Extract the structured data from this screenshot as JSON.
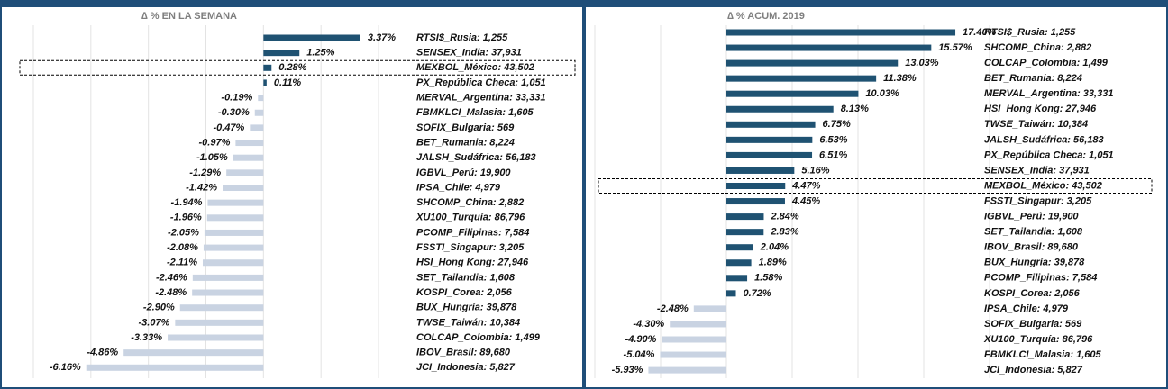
{
  "chart_data": [
    {
      "type": "bar",
      "orientation": "horizontal",
      "title": "∆ % EN LA SEMANA",
      "categories": [
        "RTSI$_Rusia: 1,255",
        "SENSEX_India: 37,931",
        "MEXBOL_México: 43,502",
        "PX_República Checa: 1,051",
        "MERVAL_Argentina: 33,331",
        "FBMKLCI_Malasia: 1,605",
        "SOFIX_Bulgaria: 569",
        "BET_Rumania: 8,224",
        "JALSH_Sudáfrica: 56,183",
        "IGBVL_Perú: 19,900",
        "IPSA_Chile: 4,979",
        "SHCOMP_China: 2,882",
        "XU100_Turquía: 86,796",
        "PCOMP_Filipinas: 7,584",
        "FSSTI_Singapur: 3,205",
        "HSI_Hong Kong: 27,946",
        "SET_Tailandia: 1,608",
        "KOSPI_Corea: 2,056",
        "BUX_Hungría: 39,878",
        "TWSE_Taiwán: 10,384",
        "COLCAP_Colombia: 1,499",
        "IBOV_Brasil: 89,680",
        "JCI_Indonesia: 5,827"
      ],
      "values": [
        3.37,
        1.25,
        0.28,
        0.11,
        -0.19,
        -0.3,
        -0.47,
        -0.97,
        -1.05,
        -1.29,
        -1.42,
        -1.94,
        -1.96,
        -2.05,
        -2.08,
        -2.11,
        -2.46,
        -2.48,
        -2.9,
        -3.07,
        -3.33,
        -4.86,
        -6.16
      ],
      "value_labels": [
        "3.37%",
        "1.25%",
        "0.28%",
        "0.11%",
        "-0.19%",
        "-0.30%",
        "-0.47%",
        "-0.97%",
        "-1.05%",
        "-1.29%",
        "-1.42%",
        "-1.94%",
        "-1.96%",
        "-2.05%",
        "-2.08%",
        "-2.11%",
        "-2.46%",
        "-2.48%",
        "-2.90%",
        "-3.07%",
        "-3.33%",
        "-4.86%",
        "-6.16%"
      ],
      "positive_color": "#1f5272",
      "negative_color": "#c9d3e2",
      "xlim": [
        -8,
        4
      ],
      "xticks": [
        -8,
        -6,
        -4,
        -2,
        0,
        2,
        4
      ],
      "grid": true,
      "highlight_index": 2
    },
    {
      "type": "bar",
      "orientation": "horizontal",
      "title": "∆ % ACUM. 2019",
      "categories": [
        "RTSI$_Rusia: 1,255",
        "SHCOMP_China: 2,882",
        "COLCAP_Colombia: 1,499",
        "BET_Rumania: 8,224",
        "MERVAL_Argentina: 33,331",
        "HSI_Hong Kong: 27,946",
        "TWSE_Taiwán: 10,384",
        "JALSH_Sudáfrica: 56,183",
        "PX_República Checa: 1,051",
        "SENSEX_India: 37,931",
        "MEXBOL_México: 43,502",
        "FSSTI_Singapur: 3,205",
        "IGBVL_Perú: 19,900",
        "SET_Tailandia: 1,608",
        "IBOV_Brasil: 89,680",
        "BUX_Hungría: 39,878",
        "PCOMP_Filipinas: 7,584",
        "KOSPI_Corea: 2,056",
        "IPSA_Chile: 4,979",
        "SOFIX_Bulgaria: 569",
        "XU100_Turquía: 86,796",
        "FBMKLCI_Malasia: 1,605",
        "JCI_Indonesia: 5,827"
      ],
      "values": [
        17.4,
        15.57,
        13.03,
        11.38,
        10.03,
        8.13,
        6.75,
        6.53,
        6.51,
        5.16,
        4.47,
        4.45,
        2.84,
        2.83,
        2.04,
        1.89,
        1.58,
        0.72,
        -2.48,
        -4.3,
        -4.9,
        -5.04,
        -5.93
      ],
      "value_labels": [
        "17.40%",
        "15.57%",
        "13.03%",
        "11.38%",
        "10.03%",
        "8.13%",
        "6.75%",
        "6.53%",
        "6.51%",
        "5.16%",
        "4.47%",
        "4.45%",
        "2.84%",
        "2.83%",
        "2.04%",
        "1.89%",
        "1.58%",
        "0.72%",
        "-2.48%",
        "-4.30%",
        "-4.90%",
        "-5.04%",
        "-5.93%"
      ],
      "positive_color": "#1f5272",
      "negative_color": "#c9d3e2",
      "xlim": [
        -10,
        20
      ],
      "xticks": [
        -10,
        -5,
        0,
        5,
        10,
        15,
        20
      ],
      "grid": true,
      "highlight_index": 10
    }
  ]
}
